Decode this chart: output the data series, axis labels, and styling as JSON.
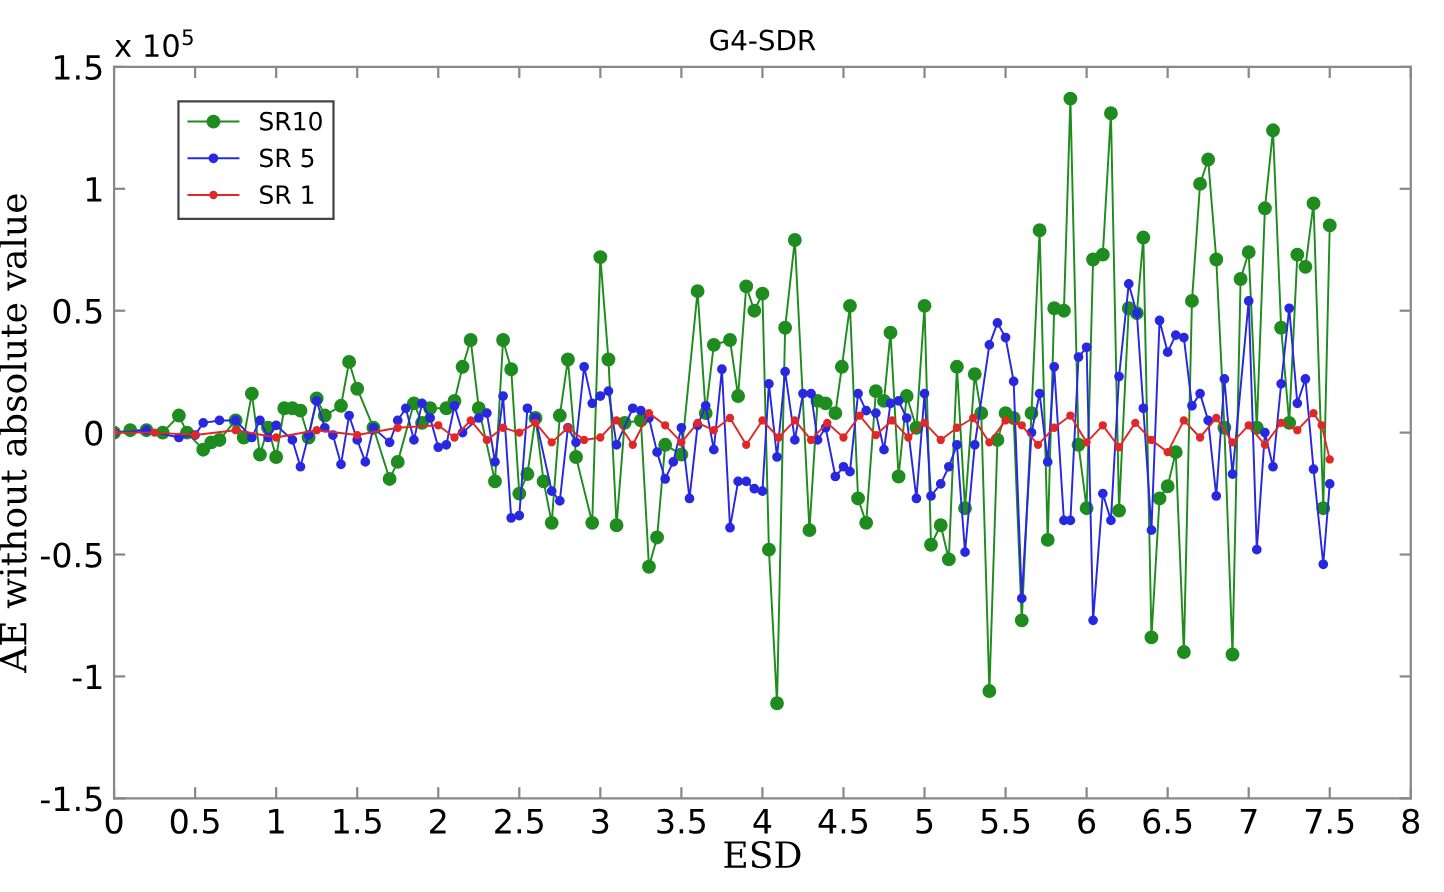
{
  "chart_data": {
    "type": "line",
    "title": "G4-SDR",
    "xlabel": "ESD",
    "ylabel": "AE without absolute value",
    "annotations": [
      "x 10$^{5}$"
    ],
    "xlim": [
      0,
      8
    ],
    "xticks": [
      0,
      0.5,
      1,
      1.5,
      2,
      2.5,
      3,
      3.5,
      4,
      4.5,
      5,
      5.5,
      6,
      6.5,
      7,
      7.5,
      8
    ],
    "ylim": [
      -1.5,
      1.5
    ],
    "yticks": [
      -1.5,
      -1,
      -0.5,
      0,
      0.5,
      1,
      1.5
    ],
    "grid": false,
    "legend": "top left",
    "marker": "circle",
    "line_style": "solid",
    "series": [
      {
        "name": "SR10",
        "color": "#1e8c1e",
        "x": [
          0,
          0.1,
          0.2,
          0.3,
          0.4,
          0.45,
          0.55,
          0.6,
          0.65,
          0.75,
          0.8,
          0.85,
          0.9,
          0.95,
          1.0,
          1.05,
          1.1,
          1.15,
          1.2,
          1.25,
          1.3,
          1.4,
          1.45,
          1.5,
          1.6,
          1.7,
          1.75,
          1.85,
          1.9,
          1.95,
          2.05,
          2.1,
          2.15,
          2.2,
          2.25,
          2.35,
          2.4,
          2.45,
          2.5,
          2.55,
          2.6,
          2.65,
          2.7,
          2.75,
          2.8,
          2.85,
          2.95,
          3.0,
          3.05,
          3.1,
          3.15,
          3.25,
          3.3,
          3.35,
          3.4,
          3.5,
          3.6,
          3.65,
          3.7,
          3.8,
          3.85,
          3.9,
          3.95,
          4.0,
          4.04,
          4.09,
          4.14,
          4.2,
          4.29,
          4.34,
          4.39,
          4.45,
          4.49,
          4.54,
          4.59,
          4.64,
          4.7,
          4.75,
          4.79,
          4.84,
          4.89,
          4.95,
          5.0,
          5.04,
          5.1,
          5.15,
          5.2,
          5.25,
          5.31,
          5.35,
          5.4,
          5.45,
          5.5,
          5.55,
          5.6,
          5.66,
          5.71,
          5.76,
          5.8,
          5.86,
          5.9,
          5.95,
          6.0,
          6.04,
          6.1,
          6.15,
          6.2,
          6.26,
          6.31,
          6.35,
          6.4,
          6.45,
          6.5,
          6.55,
          6.6,
          6.65,
          6.7,
          6.75,
          6.8,
          6.85,
          6.9,
          6.95,
          7.0,
          7.05,
          7.1,
          7.15,
          7.2,
          7.25,
          7.3,
          7.35,
          7.4,
          7.46,
          7.5
        ],
        "values": [
          0,
          0.01,
          0.01,
          0,
          0.07,
          0,
          -0.07,
          -0.04,
          -0.03,
          0.05,
          -0.02,
          0.16,
          -0.09,
          0.02,
          -0.1,
          0.1,
          0.1,
          0.09,
          -0.02,
          0.14,
          0.07,
          0.11,
          0.29,
          0.18,
          0.02,
          -0.19,
          -0.12,
          0.12,
          0.04,
          0.1,
          0.1,
          0.13,
          0.27,
          0.38,
          0.1,
          -0.2,
          0.38,
          0.26,
          -0.25,
          -0.17,
          0.06,
          -0.2,
          -0.37,
          0.07,
          0.3,
          -0.1,
          -0.37,
          0.72,
          0.3,
          -0.38,
          0.04,
          0.05,
          -0.55,
          -0.43,
          -0.05,
          -0.09,
          0.58,
          0.08,
          0.36,
          0.38,
          0.15,
          0.6,
          0.5,
          0.57,
          -0.48,
          -1.11,
          0.43,
          0.79,
          -0.4,
          0.13,
          0.12,
          0.08,
          0.27,
          0.52,
          -0.27,
          -0.37,
          0.17,
          0.13,
          0.41,
          -0.18,
          0.15,
          0.02,
          0.52,
          -0.46,
          -0.38,
          -0.52,
          0.27,
          -0.31,
          0.24,
          0.08,
          -1.06,
          -0.03,
          0.08,
          0.06,
          -0.77,
          0.08,
          0.83,
          -0.44,
          0.51,
          0.5,
          1.37,
          -0.05,
          -0.31,
          0.71,
          0.73,
          1.31,
          -0.32,
          0.51,
          0.49,
          0.8,
          -0.84,
          -0.27,
          -0.22,
          -0.08,
          -0.9,
          0.54,
          1.02,
          1.12,
          0.71,
          0.02,
          -0.91,
          0.63,
          0.74,
          0.02,
          0.92,
          1.24,
          0.43,
          0.04,
          0.73,
          0.68,
          0.94,
          -0.31,
          0.85
        ]
      },
      {
        "name": "SR 5",
        "color": "#2828e0",
        "x": [
          0,
          0.2,
          0.4,
          0.5,
          0.55,
          0.65,
          0.75,
          0.85,
          0.9,
          0.95,
          1.0,
          1.1,
          1.15,
          1.2,
          1.25,
          1.3,
          1.35,
          1.4,
          1.45,
          1.5,
          1.55,
          1.6,
          1.7,
          1.75,
          1.8,
          1.85,
          1.9,
          1.95,
          2.0,
          2.05,
          2.1,
          2.15,
          2.25,
          2.3,
          2.35,
          2.4,
          2.45,
          2.5,
          2.55,
          2.6,
          2.7,
          2.75,
          2.8,
          2.85,
          2.9,
          2.95,
          3.0,
          3.05,
          3.1,
          3.2,
          3.25,
          3.3,
          3.35,
          3.4,
          3.45,
          3.5,
          3.55,
          3.6,
          3.65,
          3.7,
          3.75,
          3.8,
          3.85,
          3.9,
          3.95,
          4.0,
          4.04,
          4.09,
          4.14,
          4.2,
          4.25,
          4.3,
          4.34,
          4.39,
          4.45,
          4.5,
          4.54,
          4.59,
          4.64,
          4.7,
          4.75,
          4.79,
          4.84,
          4.89,
          4.95,
          5.0,
          5.04,
          5.1,
          5.15,
          5.2,
          5.25,
          5.31,
          5.4,
          5.45,
          5.5,
          5.55,
          5.6,
          5.66,
          5.71,
          5.76,
          5.8,
          5.86,
          5.9,
          5.95,
          6.0,
          6.04,
          6.1,
          6.15,
          6.2,
          6.26,
          6.31,
          6.35,
          6.4,
          6.45,
          6.5,
          6.55,
          6.6,
          6.65,
          6.7,
          6.75,
          6.8,
          6.85,
          6.9,
          7.0,
          7.05,
          7.1,
          7.15,
          7.2,
          7.25,
          7.3,
          7.35,
          7.4,
          7.46,
          7.5
        ],
        "values": [
          0,
          0.01,
          -0.02,
          -0.01,
          0.04,
          0.05,
          0.05,
          -0.02,
          0.05,
          -0.02,
          0.03,
          -0.03,
          -0.14,
          -0.01,
          0.13,
          0.02,
          -0.01,
          -0.13,
          0.07,
          -0.03,
          -0.12,
          0.02,
          -0.04,
          0.05,
          0.1,
          -0.03,
          0.12,
          0.06,
          -0.06,
          -0.05,
          0.11,
          0,
          0.06,
          0.08,
          -0.12,
          0.15,
          -0.35,
          -0.34,
          0.1,
          0.06,
          -0.24,
          -0.28,
          0.02,
          -0.04,
          0.27,
          0.12,
          0.15,
          0.17,
          -0.05,
          0.1,
          0.09,
          0.06,
          -0.08,
          -0.19,
          -0.12,
          0.02,
          -0.27,
          0.03,
          0.11,
          -0.07,
          0.26,
          -0.39,
          -0.2,
          -0.2,
          -0.23,
          -0.24,
          0.2,
          -0.1,
          0.25,
          -0.03,
          0.16,
          0.16,
          -0.03,
          0.02,
          -0.18,
          -0.14,
          -0.16,
          0.16,
          0.09,
          0.08,
          -0.07,
          0.12,
          0.13,
          0.06,
          -0.27,
          0.16,
          -0.26,
          -0.21,
          -0.14,
          -0.05,
          -0.49,
          -0.05,
          0.36,
          0.45,
          0.39,
          0.21,
          -0.68,
          0,
          0.16,
          -0.12,
          0.27,
          -0.36,
          -0.36,
          0.31,
          0.35,
          -0.77,
          -0.25,
          -0.36,
          0.23,
          0.61,
          0.49,
          0.1,
          -0.4,
          0.46,
          0.33,
          0.4,
          0.39,
          0.11,
          0.16,
          0.05,
          -0.26,
          0.22,
          -0.17,
          0.54,
          -0.48,
          0,
          -0.14,
          0.2,
          0.51,
          0.12,
          0.22,
          -0.15,
          -0.54,
          -0.21
        ]
      },
      {
        "name": "SR 1",
        "color": "#e02828",
        "x": [
          0,
          0.25,
          0.5,
          0.75,
          1.0,
          1.25,
          1.5,
          1.75,
          2.0,
          2.1,
          2.2,
          2.3,
          2.4,
          2.5,
          2.6,
          2.7,
          2.8,
          2.9,
          3.0,
          3.1,
          3.2,
          3.3,
          3.4,
          3.5,
          3.6,
          3.7,
          3.8,
          3.9,
          4.0,
          4.1,
          4.2,
          4.3,
          4.4,
          4.5,
          4.6,
          4.7,
          4.8,
          4.9,
          5.0,
          5.1,
          5.2,
          5.3,
          5.4,
          5.5,
          5.6,
          5.7,
          5.8,
          5.9,
          6.0,
          6.1,
          6.2,
          6.3,
          6.4,
          6.5,
          6.6,
          6.7,
          6.8,
          6.9,
          7.0,
          7.1,
          7.2,
          7.3,
          7.4,
          7.45,
          7.5
        ],
        "values": [
          0,
          0,
          -0.01,
          0.01,
          -0.02,
          0.01,
          -0.01,
          0.02,
          0.03,
          -0.02,
          0.05,
          -0.03,
          0.02,
          0.0,
          0.04,
          -0.04,
          0.02,
          -0.03,
          -0.02,
          0.05,
          -0.05,
          0.08,
          0.03,
          -0.04,
          0.04,
          0.01,
          0.06,
          -0.05,
          0.05,
          -0.02,
          0.05,
          -0.03,
          0.04,
          -0.02,
          0.07,
          -0.01,
          0.05,
          -0.02,
          0.04,
          -0.03,
          0.02,
          0.06,
          -0.04,
          0.05,
          0.03,
          -0.05,
          0.02,
          0.07,
          -0.04,
          0.03,
          -0.06,
          0.04,
          -0.03,
          -0.08,
          0.05,
          -0.02,
          0.06,
          -0.04,
          0.03,
          -0.05,
          0.04,
          0.01,
          0.08,
          0.03,
          -0.11
        ]
      }
    ]
  }
}
